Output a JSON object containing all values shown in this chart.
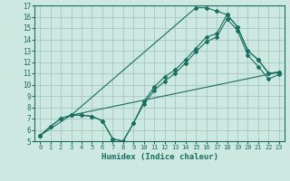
{
  "xlabel": "Humidex (Indice chaleur)",
  "bg_color": "#cce8e0",
  "grid_color": "#aaccc4",
  "line_color": "#1a6e60",
  "xlim": [
    -0.5,
    23.5
  ],
  "ylim": [
    5,
    17
  ],
  "xticks": [
    0,
    1,
    2,
    3,
    4,
    5,
    6,
    7,
    8,
    9,
    10,
    11,
    12,
    13,
    14,
    15,
    16,
    17,
    18,
    19,
    20,
    21,
    22,
    23
  ],
  "yticks": [
    5,
    6,
    7,
    8,
    9,
    10,
    11,
    12,
    13,
    14,
    15,
    16,
    17
  ],
  "line1_x": [
    0,
    1,
    2,
    3,
    4,
    5,
    6,
    7,
    8,
    9,
    10,
    11,
    12,
    13,
    14,
    15,
    16,
    17,
    18,
    19,
    20,
    21,
    22,
    23
  ],
  "line1_y": [
    5.5,
    6.3,
    7.0,
    7.3,
    7.3,
    7.2,
    6.8,
    5.2,
    5.0,
    6.6,
    8.5,
    9.8,
    10.7,
    11.3,
    12.2,
    13.2,
    14.2,
    14.5,
    16.2,
    15.1,
    13.0,
    12.2,
    11.0,
    11.1
  ],
  "line2_x": [
    0,
    1,
    2,
    3,
    4,
    5,
    6,
    7,
    8,
    9,
    10,
    11,
    12,
    13,
    14,
    15,
    16,
    17,
    18,
    19,
    20,
    21,
    22,
    23
  ],
  "line2_y": [
    5.5,
    6.3,
    7.0,
    7.3,
    7.3,
    7.2,
    6.8,
    5.2,
    5.0,
    6.6,
    8.3,
    9.5,
    10.3,
    11.0,
    11.9,
    12.9,
    13.8,
    14.2,
    15.8,
    14.8,
    12.6,
    11.6,
    10.5,
    10.9
  ],
  "line3_x": [
    0,
    3,
    23
  ],
  "line3_y": [
    5.5,
    7.3,
    11.1
  ],
  "line4_x": [
    3,
    15,
    16,
    17,
    18,
    19,
    20,
    21,
    22,
    23
  ],
  "line4_y": [
    7.3,
    16.8,
    16.8,
    16.5,
    16.2,
    15.1,
    13.0,
    12.2,
    11.0,
    11.1
  ]
}
